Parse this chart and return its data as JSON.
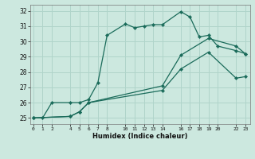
{
  "xlabel": "Humidex (Indice chaleur)",
  "background_color": "#cce8df",
  "grid_color": "#b0d4ca",
  "line_color": "#1a6b5a",
  "xticks": [
    0,
    1,
    2,
    4,
    5,
    6,
    7,
    8,
    10,
    11,
    12,
    13,
    14,
    16,
    17,
    18,
    19,
    20,
    22,
    23
  ],
  "yticks": [
    25,
    26,
    27,
    28,
    29,
    30,
    31,
    32
  ],
  "ylim": [
    24.6,
    32.4
  ],
  "xlim": [
    -0.3,
    23.5
  ],
  "line1_x": [
    0,
    1,
    2,
    4,
    5,
    6,
    7,
    8,
    10,
    11,
    12,
    13,
    14,
    16,
    17,
    18,
    19,
    20,
    22,
    23
  ],
  "line1_y": [
    25.0,
    25.0,
    26.0,
    26.0,
    26.0,
    26.2,
    27.3,
    30.4,
    31.15,
    30.9,
    31.0,
    31.1,
    31.1,
    31.95,
    31.6,
    30.3,
    30.4,
    29.7,
    29.4,
    29.2
  ],
  "line2_x": [
    0,
    4,
    5,
    6,
    14,
    16,
    19,
    22,
    23
  ],
  "line2_y": [
    25.0,
    25.1,
    25.4,
    26.0,
    26.8,
    28.2,
    29.3,
    27.6,
    27.7
  ],
  "line3_x": [
    0,
    4,
    5,
    6,
    14,
    16,
    19,
    22,
    23
  ],
  "line3_y": [
    25.0,
    25.1,
    25.4,
    26.0,
    27.1,
    29.1,
    30.2,
    29.7,
    29.2
  ]
}
